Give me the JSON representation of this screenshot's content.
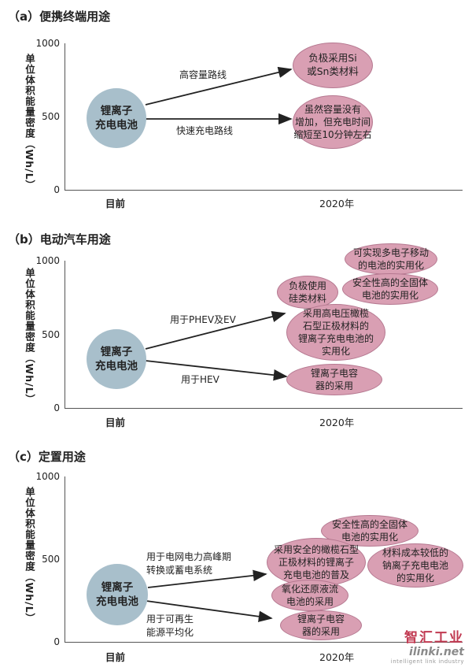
{
  "ylabel": "单位体积能量密度（Wh/L）",
  "panels": [
    {
      "title": "（a）便携终端用途",
      "yticks": [
        "1000",
        "500",
        "0"
      ],
      "xlabels": [
        "目前",
        "2020年"
      ],
      "source": "锂离子\n充电电池",
      "routes": [
        "高容量路线",
        "快速充电路线"
      ],
      "targets": [
        "负极采用Si\n或Sn类材料",
        "虽然容量没有\n增加，但充电时间\n缩短至10分钟左右"
      ]
    },
    {
      "title": "（b）电动汽车用途",
      "yticks": [
        "1000",
        "500",
        "0"
      ],
      "xlabels": [
        "目前",
        "2020年"
      ],
      "source": "锂离子\n充电电池",
      "routes": [
        "用于PHEV及EV",
        "用于HEV"
      ],
      "targets": [
        "可实现多电子移动\n的电池的实用化",
        "负极使用\n硅类材料",
        "安全性高的全固体\n电池的实用化",
        "采用高电压橄榄\n石型正极材料的\n锂离子充电电池的\n实用化",
        "锂离子电容\n器的采用"
      ]
    },
    {
      "title": "（c）定置用途",
      "yticks": [
        "1000",
        "500",
        "0"
      ],
      "xlabels": [
        "目前",
        "2020年"
      ],
      "source": "锂离子\n充电电池",
      "routes": [
        "用于电网电力高峰期\n转换或蓄电系统",
        "用于可再生\n能源平均化"
      ],
      "targets": [
        "安全性高的全固体\n电池的实用化",
        "采用安全的橄榄石型\n正极材料的锂离子\n充电电池的普及",
        "材料成本较低的\n钠离子充电电池\n的实用化",
        "氧化还原液流\n电池的采用",
        "锂离子电容\n器的采用"
      ]
    }
  ],
  "watermark": {
    "brand": "智汇工业",
    "site": "ilinki.net",
    "tagline": "intelligent link industry"
  },
  "colors": {
    "source_oval": "#a8bfcb",
    "target_oval": "#d99fb3",
    "watermark": "#c13a52"
  }
}
